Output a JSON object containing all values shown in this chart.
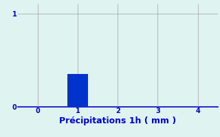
{
  "bar_x": [
    1
  ],
  "bar_height": [
    0.35
  ],
  "bar_width": 0.5,
  "bar_color": "#0033cc",
  "background_color": "#dff4f0",
  "xlim": [
    -0.5,
    4.5
  ],
  "ylim": [
    0,
    1.1
  ],
  "xticks": [
    0,
    1,
    2,
    3,
    4
  ],
  "yticks": [
    0,
    1
  ],
  "xlabel": "Précipitations 1h ( mm )",
  "xlabel_color": "#0000cc",
  "xlabel_fontsize": 9,
  "tick_color": "#0000cc",
  "tick_fontsize": 7,
  "axis_color": "#0000cc",
  "grid_color": "#999999",
  "grid_alpha": 0.6,
  "grid_linewidth": 0.8
}
